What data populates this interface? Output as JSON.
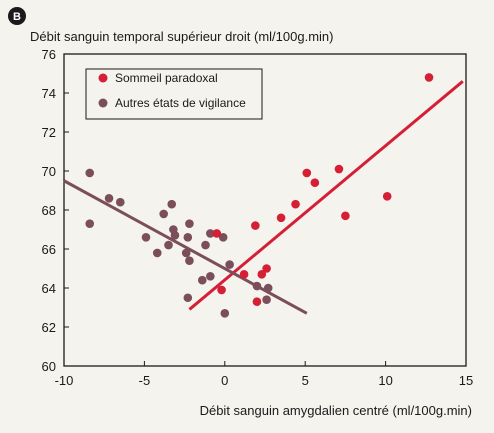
{
  "badge": "B",
  "colors": {
    "background": "#f5f3ee",
    "sommeil": "#d41f35",
    "autres": "#7a4e5a",
    "axis": "#1a1a1a",
    "badge": "#1a1a1a"
  },
  "chart_data": {
    "type": "scatter",
    "title": "",
    "xlabel": "Débit sanguin amygdalien centré (ml/100g.min)",
    "ylabel": "Débit sanguin temporal supérieur droit (ml/100g.min)",
    "xlim": [
      -10,
      15
    ],
    "ylim": [
      60,
      76
    ],
    "xticks": [
      -10,
      -5,
      0,
      5,
      10,
      15
    ],
    "yticks": [
      60,
      62,
      64,
      66,
      68,
      70,
      72,
      74,
      76
    ],
    "grid": false,
    "legend_position": "top-left",
    "series": [
      {
        "name": "Sommeil paradoxal",
        "color": "#d41f35",
        "points": [
          [
            12.7,
            74.8
          ],
          [
            5.1,
            69.9
          ],
          [
            7.1,
            70.1
          ],
          [
            5.6,
            69.4
          ],
          [
            10.1,
            68.7
          ],
          [
            7.5,
            67.7
          ],
          [
            4.4,
            68.3
          ],
          [
            3.5,
            67.6
          ],
          [
            1.9,
            67.2
          ],
          [
            2.6,
            65.0
          ],
          [
            2.3,
            64.7
          ],
          [
            1.2,
            64.7
          ],
          [
            2.0,
            63.3
          ],
          [
            -0.2,
            63.9
          ],
          [
            -0.5,
            66.8
          ]
        ],
        "trend": {
          "x": [
            -2.2,
            14.8
          ],
          "y": [
            62.9,
            74.6
          ]
        }
      },
      {
        "name": "Autres états de vigilance",
        "color": "#7a4e5a",
        "points": [
          [
            -8.4,
            69.9
          ],
          [
            -7.2,
            68.6
          ],
          [
            -6.5,
            68.4
          ],
          [
            -8.4,
            67.3
          ],
          [
            -3.8,
            67.8
          ],
          [
            -3.3,
            68.3
          ],
          [
            -4.9,
            66.6
          ],
          [
            -4.2,
            65.8
          ],
          [
            -3.5,
            66.2
          ],
          [
            -3.1,
            66.7
          ],
          [
            -3.2,
            67.0
          ],
          [
            -2.2,
            67.3
          ],
          [
            -2.3,
            66.6
          ],
          [
            -1.2,
            66.2
          ],
          [
            -0.9,
            66.8
          ],
          [
            -2.4,
            65.8
          ],
          [
            -2.2,
            65.4
          ],
          [
            -0.1,
            66.6
          ],
          [
            0.3,
            65.2
          ],
          [
            -0.9,
            64.6
          ],
          [
            -1.4,
            64.4
          ],
          [
            -2.3,
            63.5
          ],
          [
            0.0,
            62.7
          ],
          [
            2.0,
            64.1
          ],
          [
            2.7,
            64.0
          ],
          [
            2.6,
            63.4
          ]
        ],
        "trend": {
          "x": [
            -10,
            5.1
          ],
          "y": [
            69.5,
            62.7
          ]
        }
      }
    ]
  }
}
